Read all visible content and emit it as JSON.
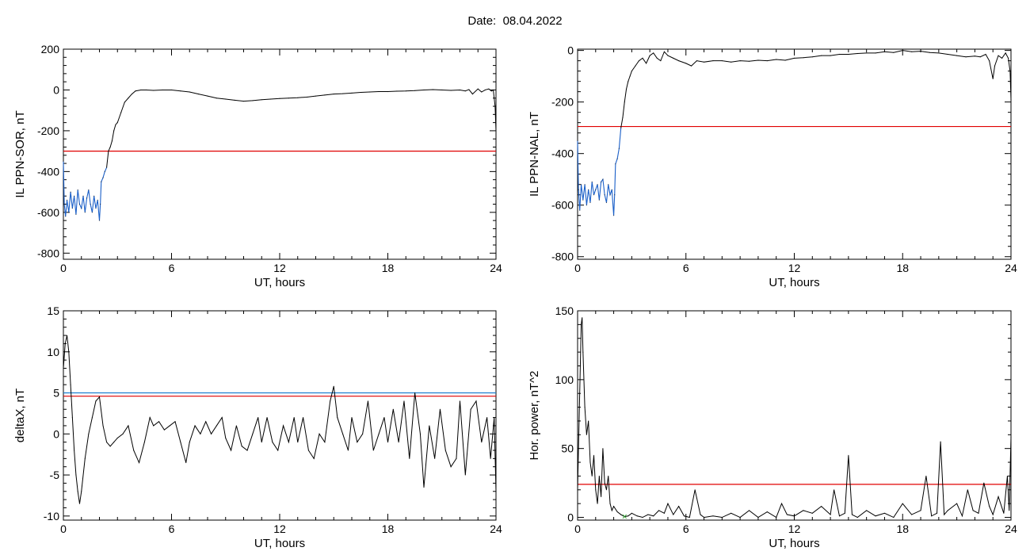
{
  "header": {
    "date_label": "Date:",
    "date_value": "08.04.2022"
  },
  "colors": {
    "trace": "#000000",
    "low_segment": "#1a5fc8",
    "threshold_red": "#e00000",
    "threshold_blue": "#1f7fd0",
    "marker_green": "#2ca02c"
  },
  "chart_data": [
    {
      "id": "il-ppn-sor",
      "type": "line",
      "xlabel": "UT, hours",
      "ylabel": "IL PPN-SOR, nT",
      "xlim": [
        0,
        24
      ],
      "ylim": [
        -830,
        200
      ],
      "xticks": [
        0,
        6,
        12,
        18,
        24
      ],
      "yticks": [
        200,
        0,
        -200,
        -400,
        -600,
        -800
      ],
      "blue_until_x": 2.4,
      "thresholds": [
        {
          "value": -300,
          "color": "red"
        }
      ],
      "series": [
        {
          "x": [
            0.0,
            0.05,
            0.12,
            0.2,
            0.3,
            0.4,
            0.5,
            0.6,
            0.7,
            0.8,
            0.9,
            1.0,
            1.1,
            1.2,
            1.3,
            1.4,
            1.5,
            1.6,
            1.7,
            1.8,
            1.9,
            2.0,
            2.05,
            2.1,
            2.2,
            2.3,
            2.4,
            2.5,
            2.6,
            2.7,
            2.8,
            2.9,
            3.0,
            3.2,
            3.4,
            3.6,
            3.8,
            4.0,
            4.3,
            4.6,
            5.0,
            5.5,
            6.0,
            6.5,
            7.0,
            7.5,
            8.0,
            8.5,
            9.0,
            9.5,
            10.0,
            10.5,
            11.0,
            11.5,
            12.0,
            12.5,
            13.0,
            13.5,
            14.0,
            14.5,
            15.0,
            15.5,
            16.0,
            16.5,
            17.0,
            17.5,
            18.0,
            18.5,
            19.0,
            19.5,
            20.0,
            20.5,
            21.0,
            21.5,
            22.0,
            22.3,
            22.5,
            22.7,
            23.0,
            23.2,
            23.4,
            23.6,
            23.75,
            23.85,
            23.95,
            24.0
          ],
          "y": [
            -350,
            -560,
            -620,
            -540,
            -600,
            -500,
            -580,
            -520,
            -610,
            -490,
            -560,
            -580,
            -520,
            -600,
            -530,
            -490,
            -560,
            -600,
            -520,
            -580,
            -540,
            -640,
            -560,
            -450,
            -430,
            -400,
            -380,
            -300,
            -280,
            -250,
            -200,
            -170,
            -160,
            -110,
            -60,
            -40,
            -20,
            -5,
            0,
            0,
            -2,
            0,
            0,
            -5,
            -10,
            -20,
            -30,
            -40,
            -45,
            -50,
            -55,
            -52,
            -48,
            -45,
            -42,
            -40,
            -38,
            -35,
            -30,
            -25,
            -20,
            -18,
            -15,
            -12,
            -10,
            -8,
            -8,
            -6,
            -5,
            -3,
            0,
            2,
            0,
            -2,
            0,
            -5,
            2,
            -20,
            5,
            -10,
            0,
            5,
            -5,
            0,
            -80,
            -200
          ]
        }
      ]
    },
    {
      "id": "il-ppn-nal",
      "type": "line",
      "xlabel": "UT, hours",
      "ylabel": "IL PPN-NAL, nT",
      "xlim": [
        0,
        24
      ],
      "ylim": [
        -810,
        5
      ],
      "xticks": [
        0,
        6,
        12,
        18,
        24
      ],
      "yticks": [
        0,
        -200,
        -400,
        -600,
        -800
      ],
      "blue_until_x": 2.4,
      "thresholds": [
        {
          "value": -295,
          "color": "red"
        }
      ],
      "series": [
        {
          "x": [
            0.0,
            0.05,
            0.12,
            0.2,
            0.3,
            0.4,
            0.5,
            0.6,
            0.7,
            0.8,
            0.9,
            1.0,
            1.1,
            1.2,
            1.3,
            1.4,
            1.5,
            1.6,
            1.7,
            1.8,
            1.9,
            2.0,
            2.05,
            2.1,
            2.2,
            2.3,
            2.4,
            2.5,
            2.6,
            2.7,
            2.8,
            2.9,
            3.0,
            3.2,
            3.4,
            3.6,
            3.8,
            4.0,
            4.2,
            4.4,
            4.6,
            4.8,
            5.0,
            5.3,
            5.6,
            6.0,
            6.3,
            6.6,
            7.0,
            7.5,
            8.0,
            8.5,
            9.0,
            9.5,
            10.0,
            10.5,
            11.0,
            11.5,
            12.0,
            12.5,
            13.0,
            13.5,
            14.0,
            14.5,
            15.0,
            15.5,
            16.0,
            16.5,
            17.0,
            17.5,
            18.0,
            18.5,
            19.0,
            19.5,
            20.0,
            20.5,
            21.0,
            21.5,
            22.0,
            22.3,
            22.6,
            22.8,
            23.0,
            23.1,
            23.3,
            23.5,
            23.7,
            23.85,
            23.95,
            24.0
          ],
          "y": [
            -350,
            -540,
            -620,
            -520,
            -580,
            -520,
            -600,
            -540,
            -590,
            -510,
            -560,
            -540,
            -520,
            -580,
            -510,
            -500,
            -560,
            -590,
            -520,
            -560,
            -540,
            -640,
            -560,
            -440,
            -420,
            -380,
            -300,
            -260,
            -200,
            -150,
            -120,
            -100,
            -80,
            -60,
            -40,
            -30,
            -50,
            -20,
            -10,
            -30,
            -40,
            -5,
            -20,
            -30,
            -40,
            -50,
            -60,
            -40,
            -45,
            -40,
            -40,
            -45,
            -40,
            -42,
            -38,
            -40,
            -35,
            -38,
            -30,
            -28,
            -25,
            -20,
            -20,
            -15,
            -15,
            -12,
            -10,
            -10,
            -5,
            -8,
            0,
            -5,
            -3,
            -8,
            -10,
            -15,
            -20,
            -25,
            -22,
            -25,
            -15,
            -40,
            -110,
            -60,
            -20,
            -30,
            -10,
            -30,
            -80,
            -190
          ]
        }
      ]
    },
    {
      "id": "delta-x",
      "type": "line",
      "xlabel": "UT, hours",
      "ylabel": "deltaX, nT",
      "xlim": [
        0,
        24
      ],
      "ylim": [
        -10.5,
        15
      ],
      "xticks": [
        0,
        6,
        12,
        18,
        24
      ],
      "yticks": [
        15,
        10,
        5,
        0,
        -5,
        -10
      ],
      "blue_until_x": null,
      "thresholds": [
        {
          "value": 5.0,
          "color": "blue"
        },
        {
          "value": 4.6,
          "color": "red"
        }
      ],
      "series": [
        {
          "x": [
            0.0,
            0.1,
            0.2,
            0.3,
            0.4,
            0.5,
            0.6,
            0.7,
            0.8,
            0.9,
            1.0,
            1.2,
            1.4,
            1.6,
            1.8,
            2.0,
            2.2,
            2.4,
            2.6,
            2.8,
            3.0,
            3.3,
            3.6,
            3.9,
            4.2,
            4.5,
            4.8,
            5.0,
            5.3,
            5.6,
            5.9,
            6.2,
            6.5,
            6.8,
            7.0,
            7.3,
            7.6,
            7.9,
            8.2,
            8.5,
            8.8,
            9.0,
            9.3,
            9.6,
            9.9,
            10.2,
            10.5,
            10.8,
            11.0,
            11.3,
            11.6,
            11.9,
            12.2,
            12.5,
            12.8,
            13.0,
            13.3,
            13.6,
            13.9,
            14.2,
            14.5,
            14.8,
            15.0,
            15.2,
            15.5,
            15.8,
            16.0,
            16.3,
            16.6,
            16.9,
            17.2,
            17.5,
            17.8,
            18.0,
            18.3,
            18.6,
            18.9,
            19.2,
            19.5,
            19.8,
            20.0,
            20.3,
            20.6,
            20.9,
            21.2,
            21.5,
            21.8,
            22.0,
            22.3,
            22.6,
            22.9,
            23.2,
            23.5,
            23.7,
            23.9,
            24.0
          ],
          "y": [
            8,
            11,
            12,
            10,
            6,
            2,
            -2,
            -5,
            -7,
            -8.5,
            -7,
            -3,
            0,
            2,
            4,
            4.5,
            1,
            -1,
            -1.5,
            -1,
            -0.5,
            0,
            1,
            -2,
            -3.5,
            -1,
            2,
            1,
            1.5,
            0.5,
            1,
            1.5,
            -1,
            -3.5,
            -1,
            1,
            0,
            1.5,
            0,
            1,
            2,
            -0.5,
            -2,
            1,
            -1.5,
            -2,
            0,
            2,
            -1,
            2,
            -1,
            -2,
            1,
            -1,
            2,
            -1,
            2,
            -2,
            -3,
            0,
            -1,
            4,
            5.8,
            2,
            0,
            -2,
            2,
            -1,
            0,
            4,
            -2,
            0,
            2,
            -1,
            3,
            -1,
            4,
            -3,
            5,
            0,
            -6.5,
            1,
            -3,
            3,
            -2,
            -4,
            -3,
            4,
            -5,
            3,
            4,
            -1,
            2,
            -3,
            2,
            -7
          ]
        }
      ]
    },
    {
      "id": "hor-power",
      "type": "line",
      "xlabel": "UT, hours",
      "ylabel": "Hor. power, nT^2",
      "xlim": [
        0,
        24
      ],
      "ylim": [
        -2,
        150
      ],
      "xticks": [
        0,
        6,
        12,
        18,
        24
      ],
      "yticks": [
        150,
        100,
        50,
        0
      ],
      "blue_until_x": null,
      "thresholds": [
        {
          "value": 24,
          "color": "red"
        }
      ],
      "marker": {
        "x": 2.6,
        "y": 0.5,
        "symbol": "×",
        "color": "green"
      },
      "series": [
        {
          "x": [
            0.0,
            0.1,
            0.2,
            0.25,
            0.3,
            0.4,
            0.5,
            0.6,
            0.7,
            0.8,
            0.9,
            1.0,
            1.1,
            1.2,
            1.3,
            1.4,
            1.5,
            1.6,
            1.7,
            1.8,
            1.9,
            2.0,
            2.2,
            2.4,
            2.6,
            2.8,
            3.0,
            3.3,
            3.6,
            3.9,
            4.2,
            4.5,
            4.8,
            5.0,
            5.3,
            5.6,
            5.9,
            6.2,
            6.5,
            6.8,
            7.0,
            7.5,
            8.0,
            8.5,
            9.0,
            9.5,
            10.0,
            10.5,
            11.0,
            11.3,
            11.6,
            12.0,
            12.5,
            13.0,
            13.5,
            14.0,
            14.2,
            14.5,
            14.8,
            15.0,
            15.2,
            15.5,
            16.0,
            16.5,
            17.0,
            17.5,
            18.0,
            18.5,
            19.0,
            19.3,
            19.6,
            19.9,
            20.1,
            20.3,
            20.5,
            21.0,
            21.3,
            21.6,
            21.9,
            22.2,
            22.5,
            22.8,
            23.0,
            23.3,
            23.6,
            23.8,
            23.9,
            24.0
          ],
          "y": [
            20,
            80,
            140,
            145,
            120,
            80,
            60,
            70,
            40,
            30,
            45,
            20,
            10,
            30,
            15,
            50,
            25,
            20,
            30,
            10,
            5,
            8,
            4,
            2,
            0.5,
            1,
            3,
            1,
            0,
            2,
            1,
            5,
            3,
            10,
            2,
            8,
            1,
            0,
            20,
            2,
            0,
            1,
            0,
            3,
            0,
            5,
            0,
            4,
            0,
            10,
            2,
            1,
            5,
            3,
            8,
            2,
            20,
            1,
            3,
            45,
            2,
            0,
            5,
            1,
            3,
            0,
            10,
            2,
            5,
            30,
            1,
            3,
            55,
            2,
            5,
            10,
            1,
            20,
            5,
            3,
            25,
            8,
            2,
            15,
            3,
            30,
            5,
            58
          ]
        }
      ]
    }
  ]
}
